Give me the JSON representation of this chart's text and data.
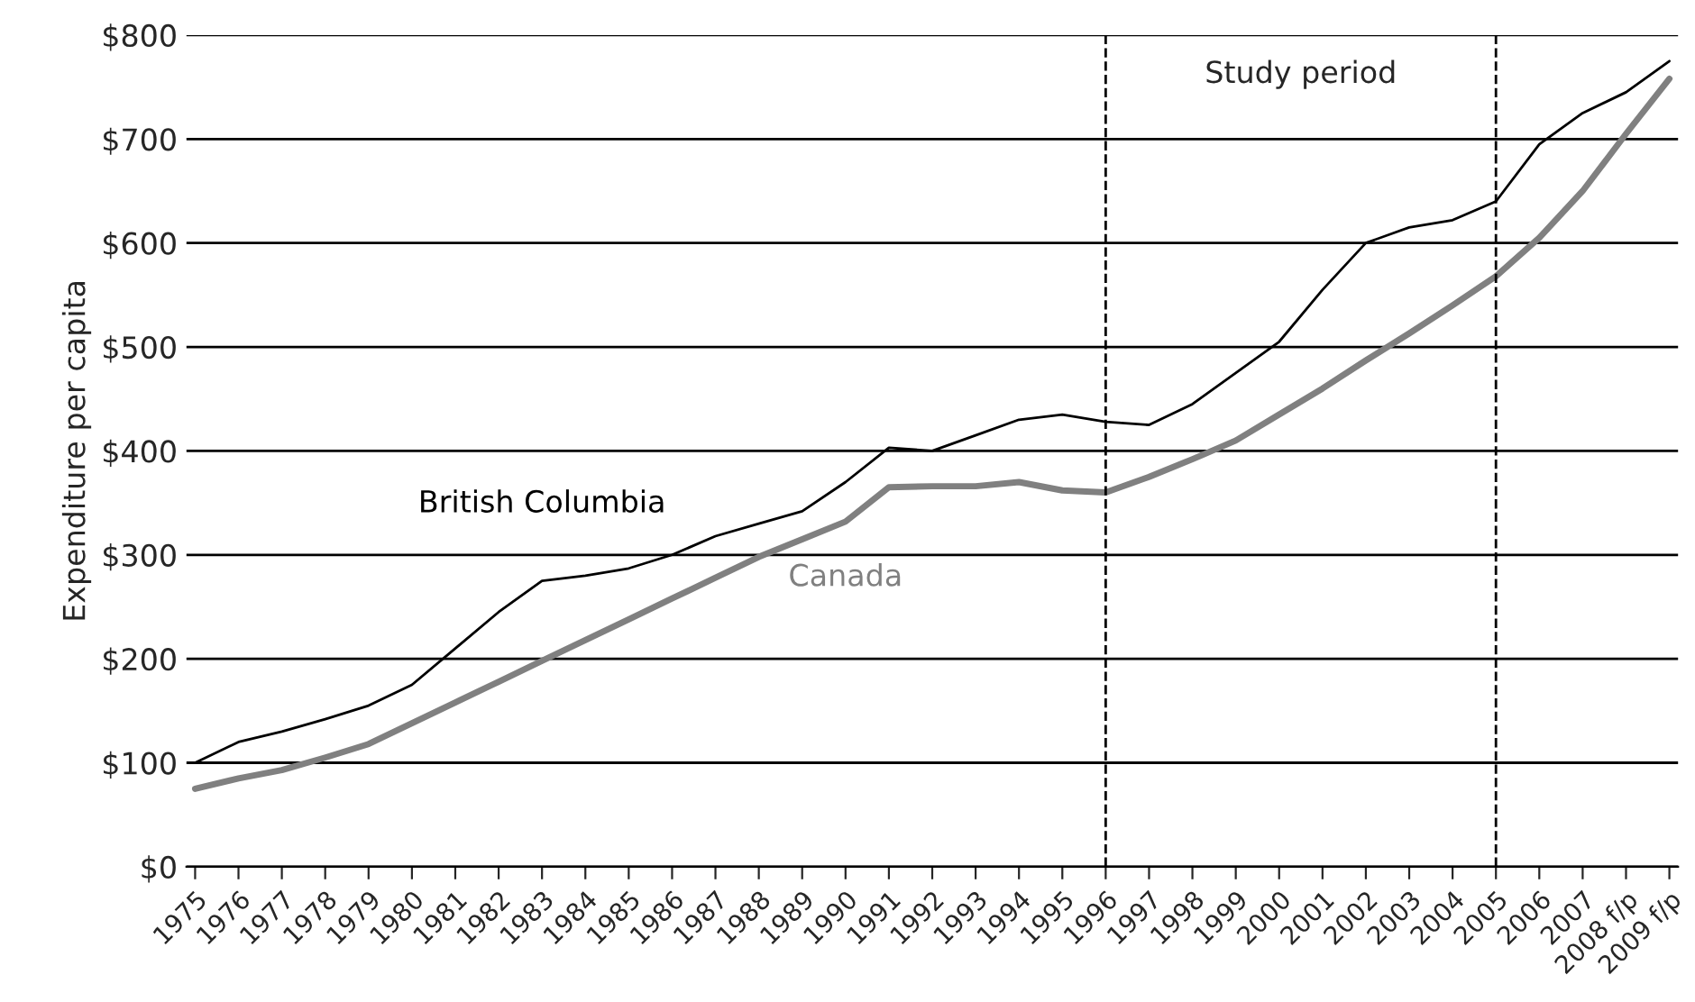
{
  "chart_data": {
    "type": "line",
    "ylabel": "Expenditure per capita",
    "categories": [
      "1975",
      "1976",
      "1977",
      "1978",
      "1979",
      "1980",
      "1981",
      "1982",
      "1983",
      "1984",
      "1985",
      "1986",
      "1987",
      "1988",
      "1989",
      "1990",
      "1991",
      "1992",
      "1993",
      "1994",
      "1995",
      "1996",
      "1997",
      "1998",
      "1999",
      "2000",
      "2001",
      "2002",
      "2003",
      "2004",
      "2005",
      "2006",
      "2007",
      "2008 f/p",
      "2009 f/p"
    ],
    "series": [
      {
        "name": "British Columbia",
        "color": "#000000",
        "values": [
          100,
          120,
          130,
          142,
          155,
          175,
          210,
          245,
          275,
          280,
          287,
          300,
          318,
          330,
          342,
          370,
          403,
          400,
          415,
          430,
          435,
          428,
          425,
          445,
          475,
          505,
          555,
          600,
          615,
          622,
          640,
          695,
          725,
          745,
          775
        ]
      },
      {
        "name": "Canada",
        "color": "#808080",
        "values": [
          75,
          85,
          93,
          105,
          118,
          138,
          158,
          178,
          198,
          218,
          238,
          258,
          278,
          298,
          315,
          332,
          365,
          366,
          366,
          370,
          362,
          360,
          375,
          392,
          410,
          435,
          460,
          487,
          513,
          540,
          568,
          605,
          650,
          705,
          758
        ]
      }
    ],
    "ylim": [
      0,
      800
    ],
    "yticks": [
      {
        "value": 0,
        "label": "$0"
      },
      {
        "value": 100,
        "label": "$100"
      },
      {
        "value": 200,
        "label": "$200"
      },
      {
        "value": 300,
        "label": "$300"
      },
      {
        "value": 400,
        "label": "$400"
      },
      {
        "value": 500,
        "label": "$500"
      },
      {
        "value": 600,
        "label": "$600"
      },
      {
        "value": 700,
        "label": "$700"
      },
      {
        "value": 800,
        "label": "$800"
      }
    ],
    "grid": "y",
    "ref_lines": [
      {
        "axis": "x",
        "value": "1996",
        "color": "#000000",
        "line_style": "dashed"
      },
      {
        "axis": "x",
        "value": "2005",
        "color": "#000000",
        "line_style": "dashed"
      }
    ],
    "annotations": [
      "Study period"
    ],
    "legend": false
  }
}
